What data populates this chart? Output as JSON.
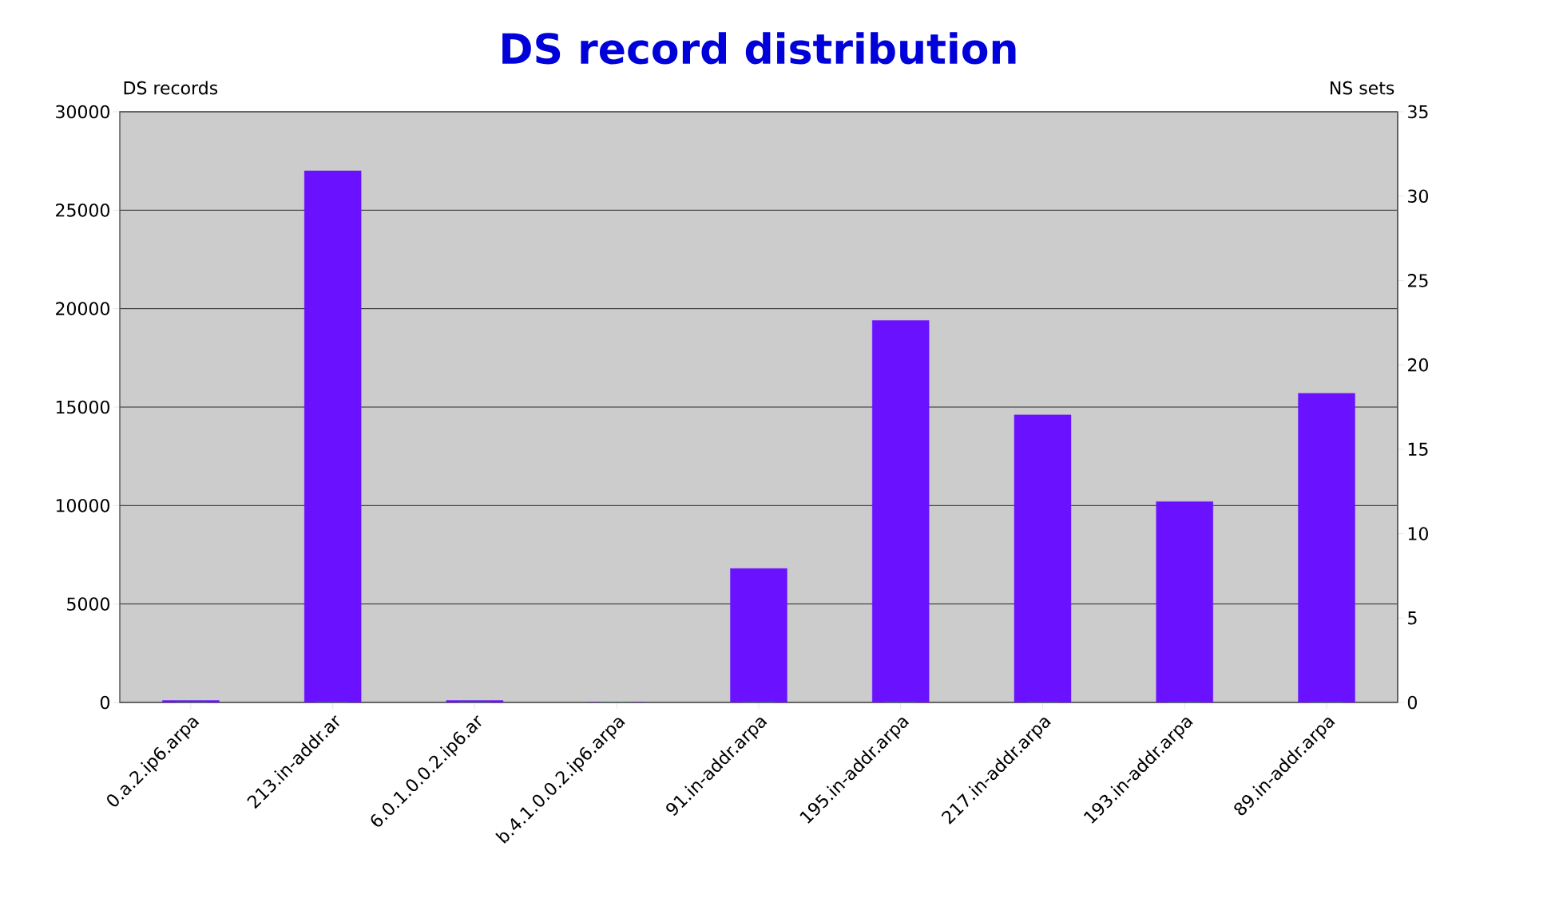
{
  "chart_data": {
    "type": "bar",
    "title": "DS record distribution",
    "ylabel": "DS records",
    "y2label": "NS sets",
    "categories": [
      "0.a.2.ip6.arpa",
      "213.in-addr.ar",
      "6.0.1.0.0.2.ip6.ar",
      "b.4.1.0.0.2.ip6.arpa",
      "91.in-addr.arpa",
      "195.in-addr.arpa",
      "217.in-addr.arpa",
      "193.in-addr.arpa",
      "89.in-addr.arpa"
    ],
    "series": [
      {
        "color": "#6a11ff",
        "values": [
          100,
          27000,
          100,
          0,
          6800,
          19400,
          14600,
          10200,
          15700
        ]
      },
      {
        "color": "#22aa22",
        "axis": "y2",
        "values": [
          0,
          0,
          0,
          0,
          0,
          0,
          0,
          0,
          0
        ]
      }
    ],
    "ylim": [
      0,
      30000
    ],
    "yticks": [
      0,
      5000,
      10000,
      15000,
      20000,
      25000,
      30000
    ],
    "y2lim": [
      0,
      35
    ],
    "y2ticks": [
      0,
      5,
      10,
      15,
      20,
      25,
      30,
      35
    ],
    "grid": "y"
  }
}
